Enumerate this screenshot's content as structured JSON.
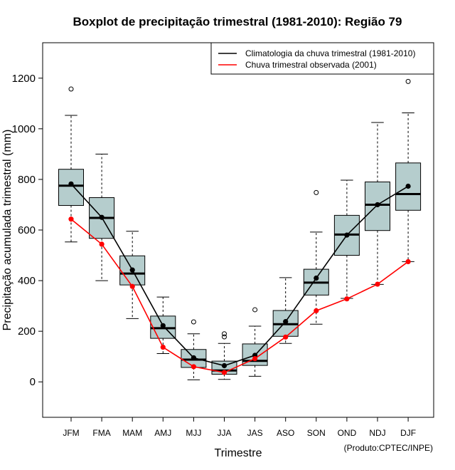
{
  "chart_data": {
    "type": "boxplot",
    "title": "Boxplot de precipitação trimestral (1981-2010): Região 79",
    "xlabel": "Trimestre",
    "ylabel": "Precipitação acumulada trimestral (mm)",
    "ylim": [
      -140,
      1340
    ],
    "yticks": [
      0,
      200,
      400,
      600,
      800,
      1000,
      1200
    ],
    "categories": [
      "JFM",
      "FMA",
      "MAM",
      "AMJ",
      "MJJ",
      "JJA",
      "JAS",
      "ASO",
      "SON",
      "OND",
      "NDJ",
      "DJF"
    ],
    "boxes": [
      {
        "whisker_low": 553,
        "q1": 697,
        "median": 775,
        "q3": 840,
        "whisker_high": 1053,
        "outliers": [
          1157
        ]
      },
      {
        "whisker_low": 400,
        "q1": 567,
        "median": 648,
        "q3": 728,
        "whisker_high": 900,
        "outliers": []
      },
      {
        "whisker_low": 250,
        "q1": 383,
        "median": 428,
        "q3": 498,
        "whisker_high": 595,
        "outliers": []
      },
      {
        "whisker_low": 112,
        "q1": 172,
        "median": 212,
        "q3": 260,
        "whisker_high": 335,
        "outliers": []
      },
      {
        "whisker_low": 8,
        "q1": 57,
        "median": 88,
        "q3": 128,
        "whisker_high": 190,
        "outliers": [
          237
        ]
      },
      {
        "whisker_low": 10,
        "q1": 30,
        "median": 45,
        "q3": 82,
        "whisker_high": 152,
        "outliers": [
          178,
          190
        ]
      },
      {
        "whisker_low": 22,
        "q1": 65,
        "median": 83,
        "q3": 150,
        "whisker_high": 220,
        "outliers": [
          285
        ]
      },
      {
        "whisker_low": 152,
        "q1": 180,
        "median": 228,
        "q3": 282,
        "whisker_high": 412,
        "outliers": []
      },
      {
        "whisker_low": 228,
        "q1": 343,
        "median": 392,
        "q3": 445,
        "whisker_high": 592,
        "outliers": [
          748
        ]
      },
      {
        "whisker_low": 330,
        "q1": 500,
        "median": 582,
        "q3": 658,
        "whisker_high": 797,
        "outliers": []
      },
      {
        "whisker_low": 385,
        "q1": 598,
        "median": 700,
        "q3": 790,
        "whisker_high": 1025,
        "outliers": []
      },
      {
        "whisker_low": 475,
        "q1": 678,
        "median": 742,
        "q3": 865,
        "whisker_high": 1063,
        "outliers": [
          1187
        ]
      }
    ],
    "series": [
      {
        "name": "Climatologia da chuva trimestral (1981-2010)",
        "color": "#000000",
        "values": [
          782,
          650,
          442,
          222,
          95,
          64,
          105,
          238,
          410,
          580,
          700,
          773
        ]
      },
      {
        "name": "Chuva trimestral observada (2001)",
        "color": "#ff0000",
        "values": [
          643,
          544,
          377,
          137,
          60,
          37,
          92,
          177,
          281,
          328,
          386,
          475
        ]
      }
    ],
    "legend_position": "top-right",
    "box_fill": "#b5cdcd",
    "credit": "(Produto:CPTEC/INPE)"
  }
}
